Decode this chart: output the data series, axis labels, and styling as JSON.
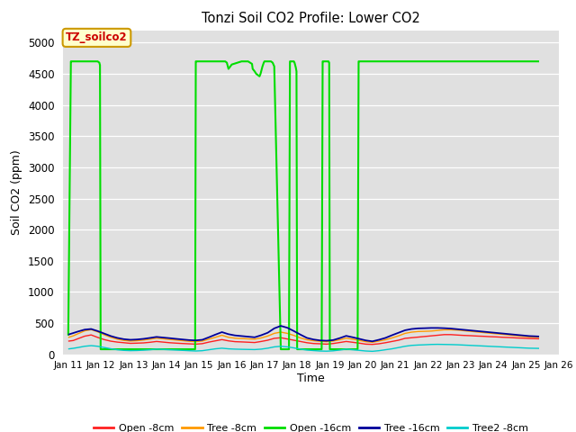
{
  "title": "Tonzi Soil CO2 Profile: Lower CO2",
  "ylabel": "Soil CO2 (ppm)",
  "xlabel": "Time",
  "ylim": [
    0,
    5200
  ],
  "yticks": [
    0,
    500,
    1000,
    1500,
    2000,
    2500,
    3000,
    3500,
    4000,
    4500,
    5000
  ],
  "bg_color": "#e0e0e0",
  "fig_color": "#ffffff",
  "legend_title": "TZ_soilco2",
  "legend_title_color": "#cc0000",
  "legend_box_facecolor": "#ffffcc",
  "legend_box_edgecolor": "#cc9900",
  "series": [
    {
      "label": "Open -8cm",
      "color": "#ff2020",
      "linewidth": 1.0,
      "data_x": [
        11.0,
        11.15,
        11.3,
        11.5,
        11.7,
        11.9,
        12.1,
        12.3,
        12.5,
        12.7,
        12.9,
        13.1,
        13.3,
        13.5,
        13.7,
        13.9,
        14.1,
        14.3,
        14.5,
        14.7,
        14.9,
        15.1,
        15.3,
        15.5,
        15.7,
        15.9,
        16.1,
        16.3,
        16.5,
        16.7,
        16.9,
        17.1,
        17.3,
        17.5,
        17.7,
        17.9,
        18.1,
        18.3,
        18.5,
        18.7,
        18.9,
        19.1,
        19.3,
        19.5,
        19.7,
        19.9,
        20.1,
        20.3,
        20.5,
        20.7,
        20.9,
        21.1,
        21.3,
        21.5,
        21.7,
        21.9,
        22.1,
        22.3,
        22.5,
        22.7,
        22.9,
        23.1,
        23.3,
        23.5,
        23.7,
        23.9,
        24.1,
        24.3,
        24.5,
        24.7,
        24.9,
        25.1,
        25.4
      ],
      "data_y": [
        210,
        220,
        250,
        290,
        310,
        270,
        235,
        210,
        195,
        185,
        175,
        178,
        182,
        192,
        205,
        195,
        185,
        178,
        172,
        167,
        162,
        170,
        195,
        215,
        235,
        215,
        202,
        198,
        193,
        188,
        205,
        225,
        255,
        265,
        245,
        225,
        205,
        185,
        172,
        168,
        162,
        172,
        188,
        205,
        192,
        178,
        162,
        158,
        168,
        185,
        205,
        225,
        255,
        265,
        275,
        285,
        295,
        305,
        315,
        315,
        308,
        302,
        298,
        292,
        288,
        282,
        278,
        272,
        268,
        262,
        258,
        252,
        248
      ]
    },
    {
      "label": "Tree -8cm",
      "color": "#ff9900",
      "linewidth": 1.0,
      "data_x": [
        11.0,
        11.15,
        11.3,
        11.5,
        11.7,
        11.9,
        12.1,
        12.3,
        12.5,
        12.7,
        12.9,
        13.1,
        13.3,
        13.5,
        13.7,
        13.9,
        14.1,
        14.3,
        14.5,
        14.7,
        14.9,
        15.1,
        15.3,
        15.5,
        15.7,
        15.9,
        16.1,
        16.3,
        16.5,
        16.7,
        16.9,
        17.1,
        17.3,
        17.5,
        17.7,
        17.9,
        18.1,
        18.3,
        18.5,
        18.7,
        18.9,
        19.1,
        19.3,
        19.5,
        19.7,
        19.9,
        20.1,
        20.3,
        20.5,
        20.7,
        20.9,
        21.1,
        21.3,
        21.5,
        21.7,
        21.9,
        22.1,
        22.3,
        22.5,
        22.7,
        22.9,
        23.1,
        23.3,
        23.5,
        23.7,
        23.9,
        24.1,
        24.3,
        24.5,
        24.7,
        24.9,
        25.1,
        25.4
      ],
      "data_y": [
        270,
        295,
        330,
        375,
        395,
        360,
        312,
        272,
        242,
        222,
        212,
        217,
        228,
        242,
        258,
        248,
        237,
        228,
        218,
        208,
        202,
        212,
        242,
        272,
        305,
        272,
        258,
        252,
        247,
        242,
        262,
        292,
        335,
        355,
        335,
        302,
        262,
        232,
        217,
        208,
        202,
        212,
        232,
        258,
        242,
        222,
        202,
        192,
        212,
        232,
        262,
        295,
        335,
        355,
        365,
        368,
        372,
        382,
        392,
        392,
        388,
        378,
        368,
        358,
        348,
        338,
        328,
        318,
        308,
        298,
        288,
        278,
        272
      ]
    },
    {
      "label": "Open -16cm",
      "color": "#00dd00",
      "linewidth": 1.5,
      "data_x": [
        11.0,
        11.08,
        11.1,
        11.12,
        11.82,
        11.84,
        11.86,
        11.88,
        11.9,
        11.95,
        11.97,
        11.99,
        12.0,
        12.5,
        13.0,
        13.5,
        14.0,
        14.5,
        14.88,
        14.9,
        14.92,
        14.94,
        14.96,
        14.98,
        15.0,
        15.5,
        15.8,
        15.85,
        15.9,
        16.0,
        16.3,
        16.5,
        16.62,
        16.64,
        16.7,
        16.75,
        16.8,
        16.85,
        16.88,
        16.9,
        16.92,
        16.94,
        16.96,
        16.98,
        17.0,
        17.05,
        17.1,
        17.15,
        17.2,
        17.25,
        17.3,
        17.5,
        17.75,
        17.78,
        17.8,
        17.82,
        17.84,
        17.86,
        17.88,
        17.9,
        17.92,
        17.94,
        17.96,
        17.98,
        18.0,
        18.05,
        18.1,
        18.75,
        18.78,
        18.8,
        18.82,
        18.84,
        18.86,
        18.88,
        18.9,
        18.92,
        18.94,
        18.96,
        18.98,
        19.0,
        19.05,
        19.1,
        19.85,
        19.88,
        19.9,
        19.92,
        19.94,
        19.96,
        19.98,
        20.0,
        20.5,
        21.0,
        21.5,
        22.0,
        22.5,
        23.0,
        23.5,
        24.0,
        24.5,
        25.0,
        25.4
      ],
      "data_y": [
        300,
        4700,
        4700,
        4700,
        4700,
        4700,
        4700,
        4700,
        4700,
        4680,
        4640,
        80,
        80,
        80,
        80,
        80,
        80,
        80,
        80,
        4700,
        4700,
        4700,
        4700,
        4700,
        4700,
        4700,
        4700,
        4680,
        4580,
        4650,
        4700,
        4700,
        4660,
        4580,
        4540,
        4500,
        4480,
        4460,
        4500,
        4540,
        4580,
        4620,
        4650,
        4680,
        4700,
        4700,
        4700,
        4700,
        4700,
        4680,
        4620,
        80,
        80,
        4700,
        4700,
        4700,
        4700,
        4700,
        4700,
        4700,
        4680,
        4640,
        4600,
        4540,
        80,
        80,
        80,
        80,
        4700,
        4700,
        4700,
        4700,
        4700,
        4700,
        4700,
        4700,
        4700,
        4700,
        4680,
        80,
        80,
        80,
        80,
        4700,
        4700,
        4700,
        4700,
        4700,
        4700,
        4700,
        4700,
        4700,
        4700,
        4700,
        4700,
        4700,
        4700,
        4700,
        4700,
        4700,
        4700
      ]
    },
    {
      "label": "Tree -16cm",
      "color": "#000099",
      "linewidth": 1.3,
      "data_x": [
        11.0,
        11.15,
        11.3,
        11.5,
        11.7,
        11.9,
        12.1,
        12.3,
        12.5,
        12.7,
        12.9,
        13.1,
        13.3,
        13.5,
        13.7,
        13.9,
        14.1,
        14.3,
        14.5,
        14.7,
        14.9,
        15.1,
        15.3,
        15.5,
        15.7,
        15.9,
        16.1,
        16.3,
        16.5,
        16.7,
        16.9,
        17.1,
        17.3,
        17.5,
        17.7,
        17.9,
        18.1,
        18.3,
        18.5,
        18.7,
        18.9,
        19.1,
        19.3,
        19.5,
        19.7,
        19.9,
        20.1,
        20.3,
        20.5,
        20.7,
        20.9,
        21.1,
        21.3,
        21.5,
        21.7,
        21.9,
        22.1,
        22.3,
        22.5,
        22.7,
        22.9,
        23.1,
        23.3,
        23.5,
        23.7,
        23.9,
        24.1,
        24.3,
        24.5,
        24.7,
        24.9,
        25.1,
        25.4
      ],
      "data_y": [
        315,
        340,
        365,
        395,
        405,
        372,
        332,
        292,
        262,
        242,
        232,
        237,
        247,
        262,
        278,
        268,
        258,
        247,
        237,
        227,
        222,
        232,
        272,
        315,
        355,
        322,
        302,
        292,
        282,
        272,
        305,
        345,
        415,
        455,
        425,
        372,
        315,
        262,
        237,
        222,
        217,
        227,
        258,
        295,
        272,
        247,
        222,
        207,
        232,
        262,
        305,
        345,
        385,
        405,
        415,
        418,
        422,
        422,
        418,
        412,
        402,
        392,
        382,
        372,
        362,
        352,
        342,
        332,
        322,
        312,
        302,
        292,
        285
      ]
    },
    {
      "label": "Tree2 -8cm",
      "color": "#00cccc",
      "linewidth": 1.0,
      "data_x": [
        11.0,
        11.15,
        11.3,
        11.5,
        11.7,
        11.9,
        12.1,
        12.3,
        12.5,
        12.7,
        12.9,
        13.1,
        13.3,
        13.5,
        13.7,
        13.9,
        14.1,
        14.3,
        14.5,
        14.7,
        14.9,
        15.1,
        15.3,
        15.5,
        15.7,
        15.9,
        16.1,
        16.3,
        16.5,
        16.7,
        16.9,
        17.1,
        17.3,
        17.5,
        17.7,
        17.9,
        18.1,
        18.3,
        18.5,
        18.7,
        18.9,
        19.1,
        19.3,
        19.5,
        19.7,
        19.9,
        20.1,
        20.3,
        20.5,
        20.7,
        20.9,
        21.1,
        21.3,
        21.5,
        21.7,
        21.9,
        22.1,
        22.3,
        22.5,
        22.7,
        22.9,
        23.1,
        23.3,
        23.5,
        23.7,
        23.9,
        24.1,
        24.3,
        24.5,
        24.7,
        24.9,
        25.1,
        25.4
      ],
      "data_y": [
        85,
        95,
        108,
        128,
        138,
        128,
        108,
        88,
        72,
        62,
        58,
        60,
        65,
        72,
        82,
        77,
        72,
        67,
        62,
        57,
        52,
        57,
        72,
        87,
        97,
        87,
        82,
        79,
        77,
        75,
        82,
        97,
        118,
        128,
        118,
        102,
        82,
        67,
        59,
        52,
        49,
        55,
        67,
        82,
        72,
        62,
        52,
        47,
        57,
        72,
        87,
        107,
        128,
        142,
        148,
        152,
        157,
        159,
        157,
        155,
        152,
        147,
        142,
        137,
        132,
        127,
        122,
        117,
        112,
        107,
        102,
        97,
        94
      ]
    }
  ],
  "xtick_positions": [
    11,
    12,
    13,
    14,
    15,
    16,
    17,
    18,
    19,
    20,
    21,
    22,
    23,
    24,
    25,
    26
  ],
  "xtick_labels": [
    "Jan 11",
    "Jan 12",
    "Jan 13",
    "Jan 14",
    "Jan 15",
    "Jan 16",
    "Jan 17",
    "Jan 18",
    "Jan 19",
    "Jan 20",
    "Jan 21",
    "Jan 22",
    "Jan 23",
    "Jan 24",
    "Jan 25",
    "Jan 26"
  ],
  "xlim": [
    10.85,
    25.7
  ]
}
